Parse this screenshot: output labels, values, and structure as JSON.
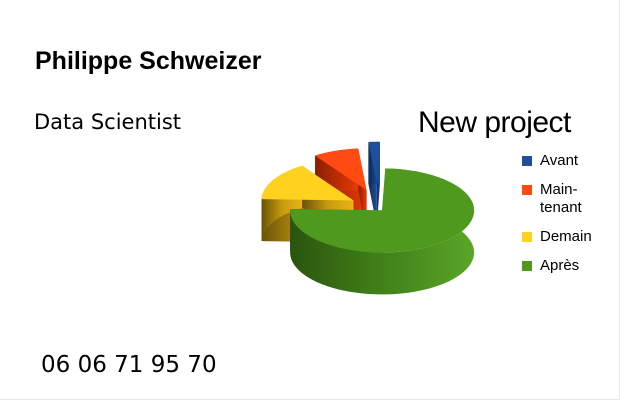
{
  "card": {
    "name": "Philippe Schweizer",
    "role": "Data Scientist",
    "phone": "06 06 71 95 70"
  },
  "chart_data": {
    "type": "pie",
    "title": "New project",
    "three_d": true,
    "exploded": true,
    "legend_position": "right",
    "slices": [
      {
        "label": "Avant",
        "value": 2,
        "color": "#1f4e9c"
      },
      {
        "label": "Main-\ntenant",
        "value": 8,
        "color": "#ff4a12"
      },
      {
        "label": "Demain",
        "value": 15,
        "color": "#ffd21f"
      },
      {
        "label": "Après",
        "value": 75,
        "color": "#4f9a1e"
      }
    ]
  }
}
